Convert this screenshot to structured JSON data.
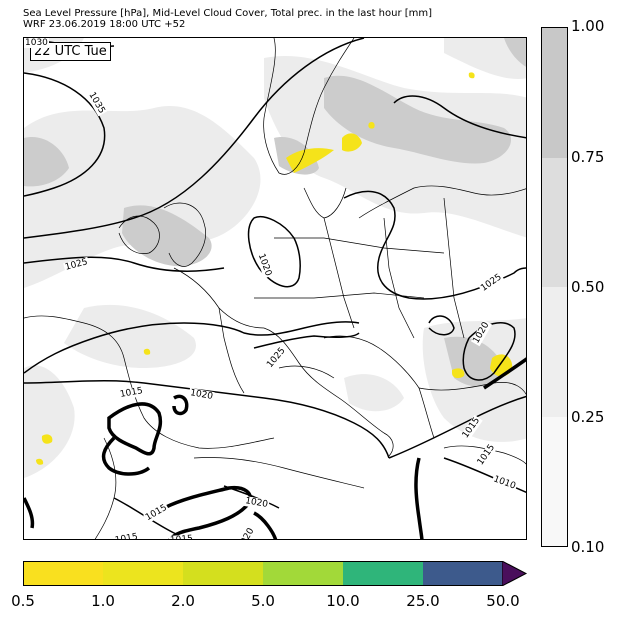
{
  "header": {
    "title_line1": "Sea Level Pressure [hPa], Mid-Level Cloud Cover, Total prec. in the last hour [mm]",
    "title_line2": "WRF 23.06.2019 18:00 UTC +52"
  },
  "map": {
    "time_label": "22 UTC Tue",
    "isobar_labels": [
      "1030",
      "1035",
      "1025",
      "1020",
      "1025",
      "1020",
      "1025",
      "1015",
      "1020",
      "1020",
      "1015",
      "1015",
      "1015",
      "1015",
      "1020",
      "1015",
      "1010"
    ],
    "colors": {
      "cloud_light": "#ececec",
      "cloud_dark": "#cccccc",
      "precip_yellow": "#f5e31a",
      "coast": "#000000"
    }
  },
  "cloud_colorbar": {
    "ticks": [
      "1.00",
      "0.75",
      "0.50",
      "0.25",
      "0.10"
    ],
    "segments": [
      {
        "from": 0.1,
        "to": 0.25,
        "color": "#f8f8f8"
      },
      {
        "from": 0.25,
        "to": 0.5,
        "color": "#eeeeee"
      },
      {
        "from": 0.5,
        "to": 0.75,
        "color": "#dddddd"
      },
      {
        "from": 0.75,
        "to": 1.0,
        "color": "#c8c8c8"
      }
    ]
  },
  "precip_colorbar": {
    "ticks": [
      "0.5",
      "1.0",
      "2.0",
      "5.0",
      "10.0",
      "25.0",
      "50.0"
    ],
    "segments": [
      {
        "label": "0.5-1.0",
        "color": "#f9e01f"
      },
      {
        "label": "1.0-2.0",
        "color": "#ece41e"
      },
      {
        "label": "2.0-5.0",
        "color": "#d4df1e"
      },
      {
        "label": "5.0-10.0",
        "color": "#a2d939"
      },
      {
        "label": "10.0-25.0",
        "color": "#2fb57a"
      },
      {
        "label": "25.0-50.0",
        "color": "#3d5a8c"
      },
      {
        "label": ">50.0",
        "color": "#4a0f5c"
      }
    ]
  }
}
